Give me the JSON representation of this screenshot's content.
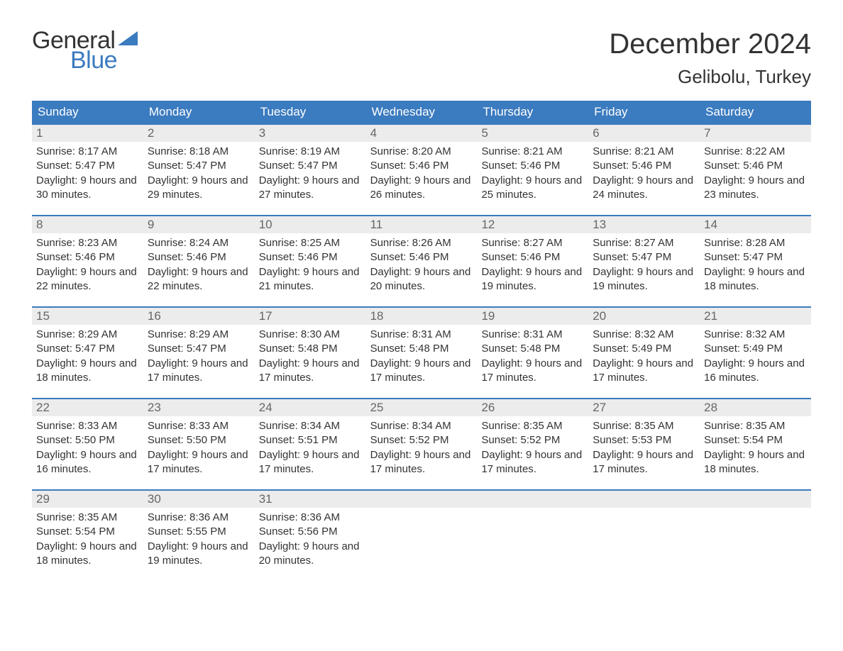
{
  "logo": {
    "text_top": "General",
    "text_bottom": "Blue",
    "triangle_color": "#3b7bbf"
  },
  "title": "December 2024",
  "location": "Gelibolu, Turkey",
  "colors": {
    "header_bg": "#3b7bbf",
    "header_text": "#ffffff",
    "daynum_bg": "#ececec",
    "daynum_text": "#666666",
    "body_text": "#333333",
    "week_border": "#3b7bbf"
  },
  "weekdays": [
    "Sunday",
    "Monday",
    "Tuesday",
    "Wednesday",
    "Thursday",
    "Friday",
    "Saturday"
  ],
  "weeks": [
    [
      {
        "n": "1",
        "sunrise": "8:17 AM",
        "sunset": "5:47 PM",
        "daylight": "9 hours and 30 minutes."
      },
      {
        "n": "2",
        "sunrise": "8:18 AM",
        "sunset": "5:47 PM",
        "daylight": "9 hours and 29 minutes."
      },
      {
        "n": "3",
        "sunrise": "8:19 AM",
        "sunset": "5:47 PM",
        "daylight": "9 hours and 27 minutes."
      },
      {
        "n": "4",
        "sunrise": "8:20 AM",
        "sunset": "5:46 PM",
        "daylight": "9 hours and 26 minutes."
      },
      {
        "n": "5",
        "sunrise": "8:21 AM",
        "sunset": "5:46 PM",
        "daylight": "9 hours and 25 minutes."
      },
      {
        "n": "6",
        "sunrise": "8:21 AM",
        "sunset": "5:46 PM",
        "daylight": "9 hours and 24 minutes."
      },
      {
        "n": "7",
        "sunrise": "8:22 AM",
        "sunset": "5:46 PM",
        "daylight": "9 hours and 23 minutes."
      }
    ],
    [
      {
        "n": "8",
        "sunrise": "8:23 AM",
        "sunset": "5:46 PM",
        "daylight": "9 hours and 22 minutes."
      },
      {
        "n": "9",
        "sunrise": "8:24 AM",
        "sunset": "5:46 PM",
        "daylight": "9 hours and 22 minutes."
      },
      {
        "n": "10",
        "sunrise": "8:25 AM",
        "sunset": "5:46 PM",
        "daylight": "9 hours and 21 minutes."
      },
      {
        "n": "11",
        "sunrise": "8:26 AM",
        "sunset": "5:46 PM",
        "daylight": "9 hours and 20 minutes."
      },
      {
        "n": "12",
        "sunrise": "8:27 AM",
        "sunset": "5:46 PM",
        "daylight": "9 hours and 19 minutes."
      },
      {
        "n": "13",
        "sunrise": "8:27 AM",
        "sunset": "5:47 PM",
        "daylight": "9 hours and 19 minutes."
      },
      {
        "n": "14",
        "sunrise": "8:28 AM",
        "sunset": "5:47 PM",
        "daylight": "9 hours and 18 minutes."
      }
    ],
    [
      {
        "n": "15",
        "sunrise": "8:29 AM",
        "sunset": "5:47 PM",
        "daylight": "9 hours and 18 minutes."
      },
      {
        "n": "16",
        "sunrise": "8:29 AM",
        "sunset": "5:47 PM",
        "daylight": "9 hours and 17 minutes."
      },
      {
        "n": "17",
        "sunrise": "8:30 AM",
        "sunset": "5:48 PM",
        "daylight": "9 hours and 17 minutes."
      },
      {
        "n": "18",
        "sunrise": "8:31 AM",
        "sunset": "5:48 PM",
        "daylight": "9 hours and 17 minutes."
      },
      {
        "n": "19",
        "sunrise": "8:31 AM",
        "sunset": "5:48 PM",
        "daylight": "9 hours and 17 minutes."
      },
      {
        "n": "20",
        "sunrise": "8:32 AM",
        "sunset": "5:49 PM",
        "daylight": "9 hours and 17 minutes."
      },
      {
        "n": "21",
        "sunrise": "8:32 AM",
        "sunset": "5:49 PM",
        "daylight": "9 hours and 16 minutes."
      }
    ],
    [
      {
        "n": "22",
        "sunrise": "8:33 AM",
        "sunset": "5:50 PM",
        "daylight": "9 hours and 16 minutes."
      },
      {
        "n": "23",
        "sunrise": "8:33 AM",
        "sunset": "5:50 PM",
        "daylight": "9 hours and 17 minutes."
      },
      {
        "n": "24",
        "sunrise": "8:34 AM",
        "sunset": "5:51 PM",
        "daylight": "9 hours and 17 minutes."
      },
      {
        "n": "25",
        "sunrise": "8:34 AM",
        "sunset": "5:52 PM",
        "daylight": "9 hours and 17 minutes."
      },
      {
        "n": "26",
        "sunrise": "8:35 AM",
        "sunset": "5:52 PM",
        "daylight": "9 hours and 17 minutes."
      },
      {
        "n": "27",
        "sunrise": "8:35 AM",
        "sunset": "5:53 PM",
        "daylight": "9 hours and 17 minutes."
      },
      {
        "n": "28",
        "sunrise": "8:35 AM",
        "sunset": "5:54 PM",
        "daylight": "9 hours and 18 minutes."
      }
    ],
    [
      {
        "n": "29",
        "sunrise": "8:35 AM",
        "sunset": "5:54 PM",
        "daylight": "9 hours and 18 minutes."
      },
      {
        "n": "30",
        "sunrise": "8:36 AM",
        "sunset": "5:55 PM",
        "daylight": "9 hours and 19 minutes."
      },
      {
        "n": "31",
        "sunrise": "8:36 AM",
        "sunset": "5:56 PM",
        "daylight": "9 hours and 20 minutes."
      },
      {
        "empty": true
      },
      {
        "empty": true
      },
      {
        "empty": true
      },
      {
        "empty": true
      }
    ]
  ],
  "labels": {
    "sunrise": "Sunrise: ",
    "sunset": "Sunset: ",
    "daylight": "Daylight: "
  }
}
